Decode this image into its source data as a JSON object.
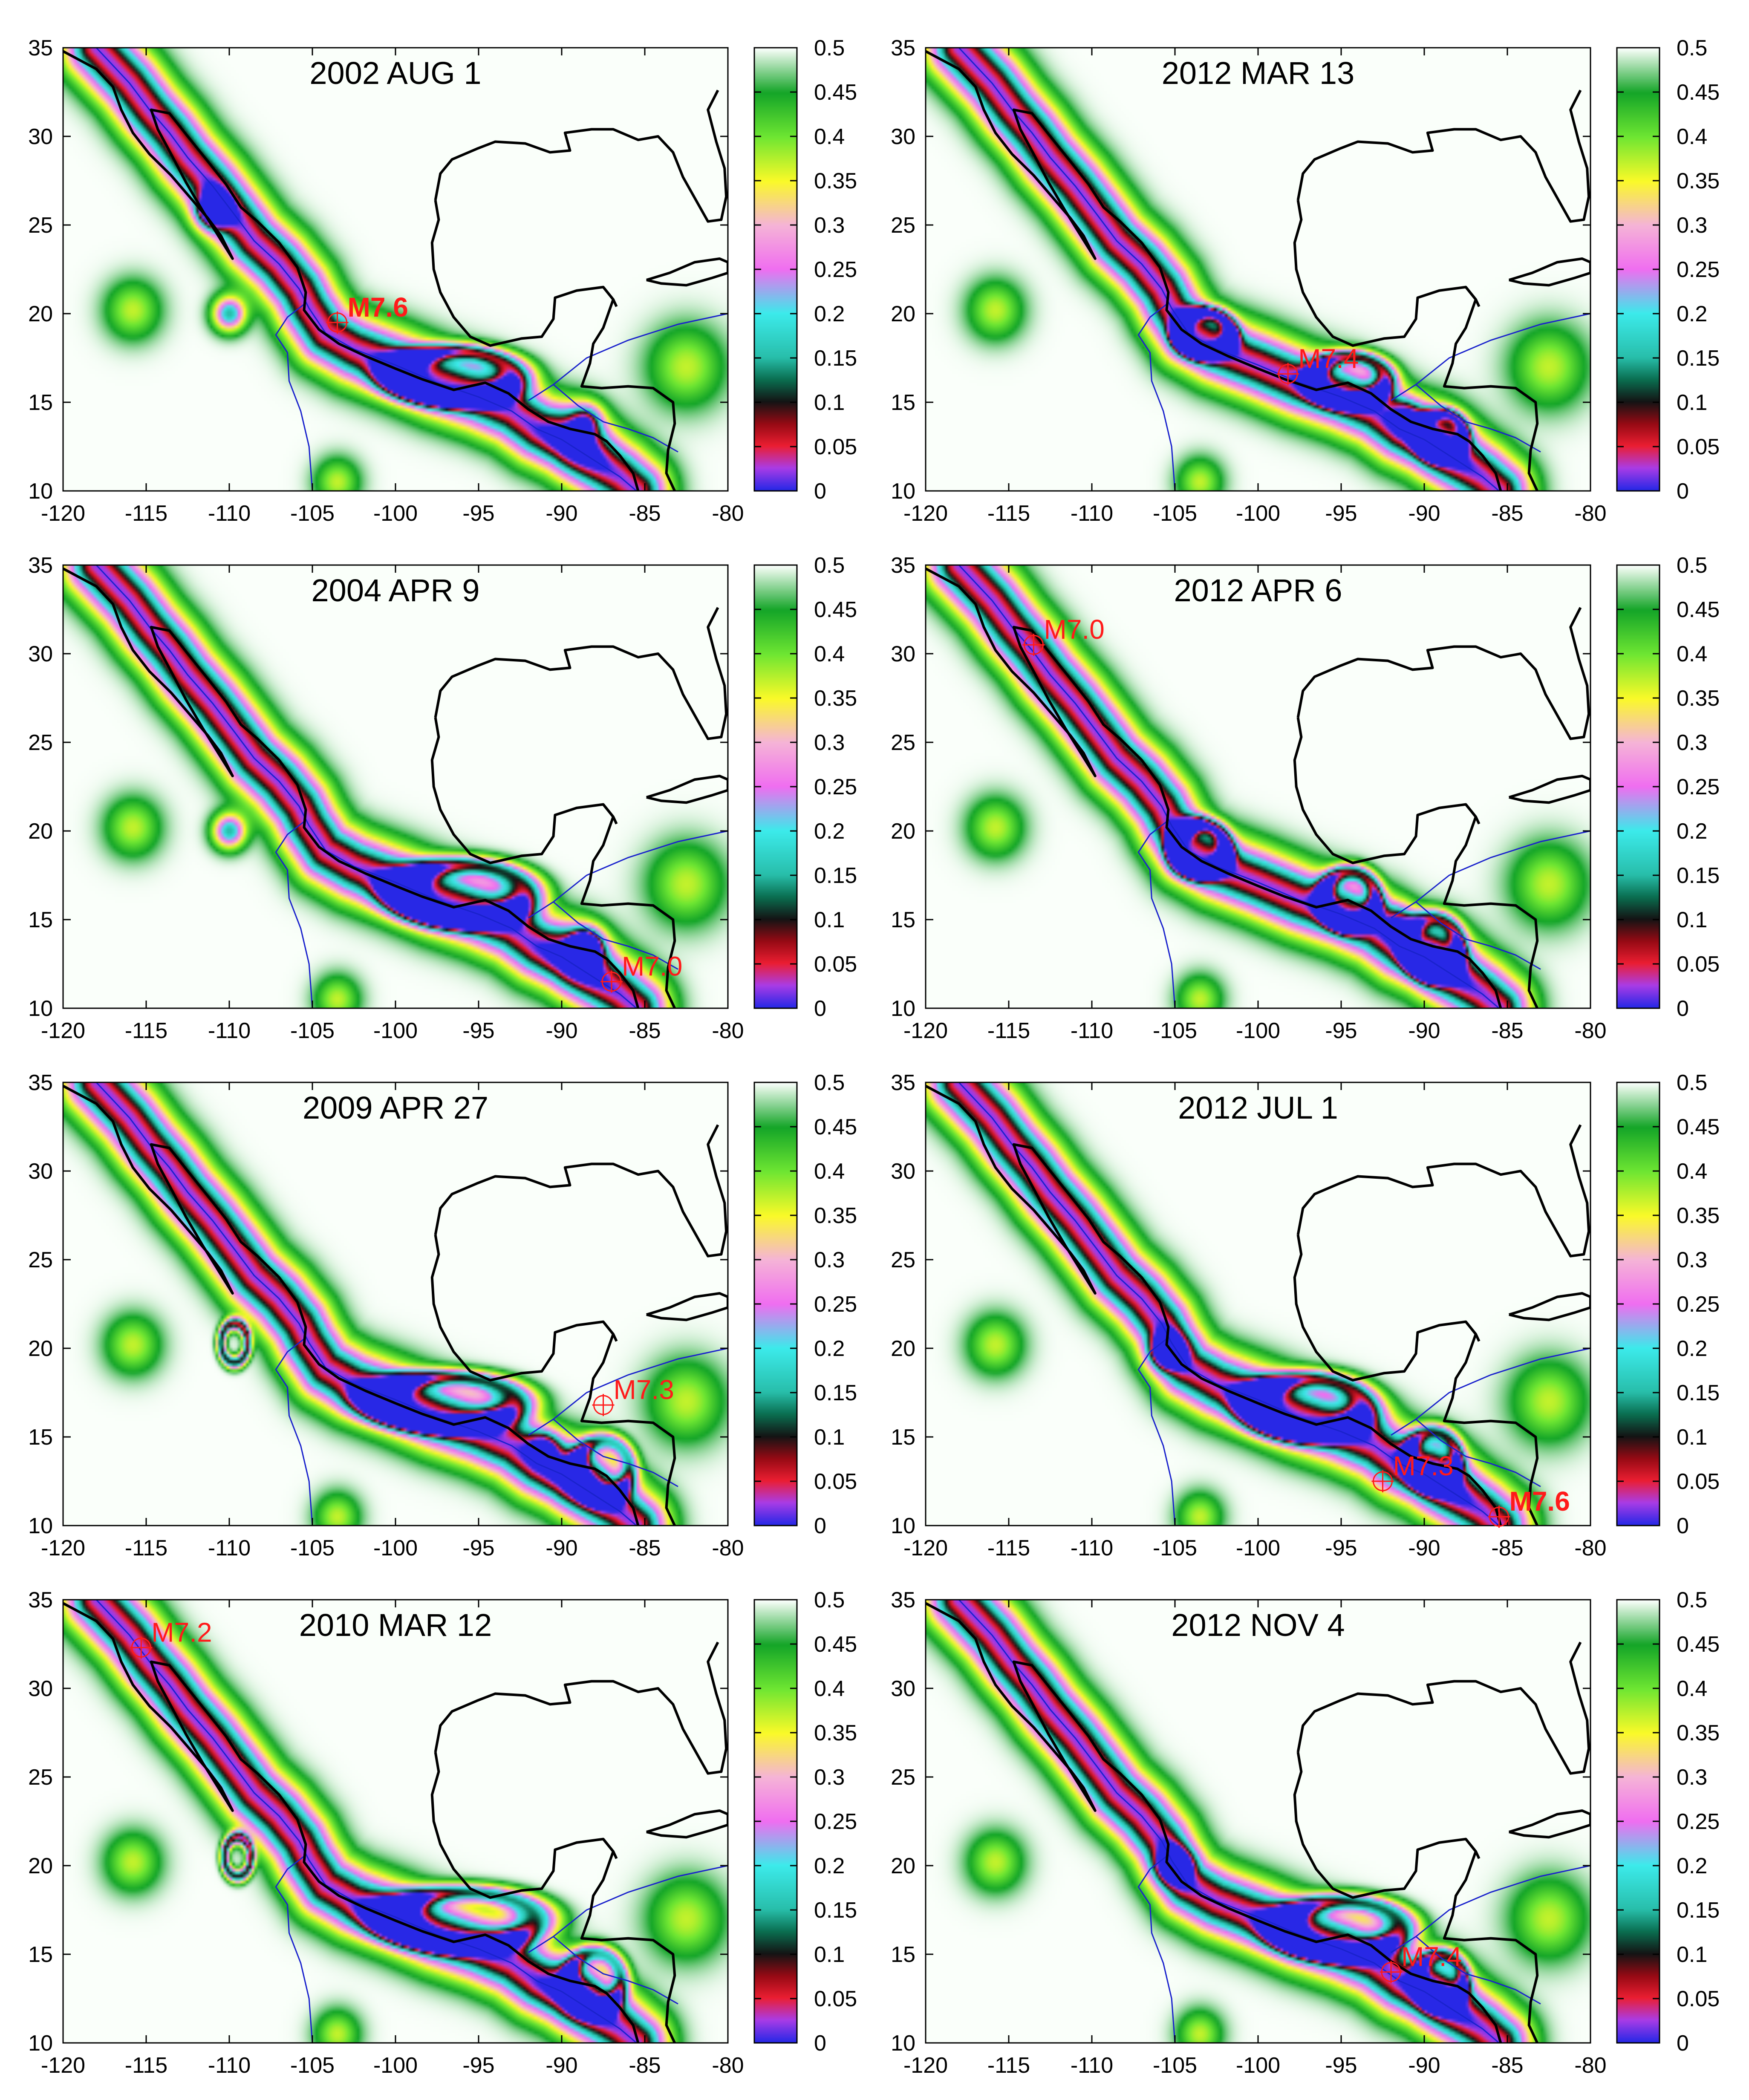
{
  "figure": {
    "colors": {
      "coast": "#000000",
      "plate_boundary": "#1a22cc",
      "event_marker": "#ff1a1a",
      "frame": "#000000",
      "background": "#ffffff"
    }
  },
  "chart_data": [
    {
      "type": "heatmap",
      "title": "2002 AUG 1",
      "x_ticks": [
        "-120",
        "-115",
        "-110",
        "-105",
        "-100",
        "-95",
        "-90",
        "-85",
        "-80"
      ],
      "y_ticks": [
        "35",
        "30",
        "25",
        "20",
        "15",
        "10"
      ],
      "xlim": [
        -120,
        -80
      ],
      "ylim": [
        10,
        35
      ],
      "colorbar": {
        "range": [
          0,
          0.5
        ],
        "ticks": [
          "0.5",
          "0.45",
          "0.4",
          "0.35",
          "0.3",
          "0.25",
          "0.2",
          "0.15",
          "0.1",
          "0.05",
          "0"
        ]
      },
      "events": [
        {
          "label": "M7.6",
          "lon": -103.5,
          "lat": 19.5,
          "bold": true
        }
      ],
      "minima": [
        {
          "lon": -110.0,
          "lat": 20.0,
          "kind": "point",
          "depth": 0.35
        },
        {
          "lon": -111.0,
          "lat": 25.8,
          "kind": "point",
          "depth": 0.45
        },
        {
          "lon": -96.5,
          "lat": 16.5,
          "kind": "loop",
          "rx": 3.6,
          "ry": 1.4,
          "depth": 0.35
        },
        {
          "lon": -88.5,
          "lat": 14.0,
          "kind": "point",
          "depth": 0.25
        }
      ]
    },
    {
      "type": "heatmap",
      "title": "2012 MAR 13",
      "x_ticks": [
        "-120",
        "-115",
        "-110",
        "-105",
        "-100",
        "-95",
        "-90",
        "-85",
        "-80"
      ],
      "y_ticks": [
        "35",
        "30",
        "25",
        "20",
        "15",
        "10"
      ],
      "xlim": [
        -120,
        -80
      ],
      "ylim": [
        10,
        35
      ],
      "colorbar": {
        "range": [
          0,
          0.5
        ],
        "ticks": [
          "0.5",
          "0.45",
          "0.4",
          "0.35",
          "0.3",
          "0.25",
          "0.2",
          "0.15",
          "0.1",
          "0.05",
          "0"
        ]
      },
      "events": [
        {
          "label": "M7.4",
          "lon": -98.2,
          "lat": 16.6,
          "bold": false
        }
      ],
      "minima": [
        {
          "lon": -103.2,
          "lat": 18.9,
          "kind": "loop",
          "rx": 1.6,
          "ry": 1.2,
          "depth": 0.35
        },
        {
          "lon": -94.5,
          "lat": 16.3,
          "kind": "loop",
          "rx": 2.2,
          "ry": 1.3,
          "depth": 0.35
        },
        {
          "lon": -91.0,
          "lat": 14.3,
          "kind": "point",
          "depth": 0.2
        },
        {
          "lon": -89.0,
          "lat": 13.2,
          "kind": "loop",
          "rx": 1.4,
          "ry": 1.2,
          "depth": 0.3
        }
      ]
    },
    {
      "type": "heatmap",
      "title": "2004 APR 9",
      "x_ticks": [
        "-120",
        "-115",
        "-110",
        "-105",
        "-100",
        "-95",
        "-90",
        "-85",
        "-80"
      ],
      "y_ticks": [
        "35",
        "30",
        "25",
        "20",
        "15",
        "10"
      ],
      "xlim": [
        -120,
        -80
      ],
      "ylim": [
        10,
        35
      ],
      "colorbar": {
        "range": [
          0,
          0.5
        ],
        "ticks": [
          "0.5",
          "0.45",
          "0.4",
          "0.35",
          "0.3",
          "0.25",
          "0.2",
          "0.15",
          "0.1",
          "0.05",
          "0"
        ]
      },
      "events": [
        {
          "label": "M7.0",
          "lon": -87.0,
          "lat": 11.5,
          "bold": false
        }
      ],
      "minima": [
        {
          "lon": -110.0,
          "lat": 20.0,
          "kind": "point",
          "depth": 0.35
        },
        {
          "lon": -96.0,
          "lat": 16.5,
          "kind": "loop",
          "rx": 3.8,
          "ry": 1.6,
          "depth": 0.35
        },
        {
          "lon": -88.5,
          "lat": 13.5,
          "kind": "point",
          "depth": 0.5
        }
      ]
    },
    {
      "type": "heatmap",
      "title": "2012 APR 6",
      "x_ticks": [
        "-120",
        "-115",
        "-110",
        "-105",
        "-100",
        "-95",
        "-90",
        "-85",
        "-80"
      ],
      "y_ticks": [
        "35",
        "30",
        "25",
        "20",
        "15",
        "10"
      ],
      "xlim": [
        -120,
        -80
      ],
      "ylim": [
        10,
        35
      ],
      "colorbar": {
        "range": [
          0,
          0.5
        ],
        "ticks": [
          "0.5",
          "0.45",
          "0.4",
          "0.35",
          "0.3",
          "0.25",
          "0.2",
          "0.15",
          "0.1",
          "0.05",
          "0"
        ]
      },
      "events": [
        {
          "label": "M7.0",
          "lon": -113.5,
          "lat": 30.5,
          "bold": false
        }
      ],
      "minima": [
        {
          "lon": -103.5,
          "lat": 19.0,
          "kind": "loop",
          "rx": 1.6,
          "ry": 1.4,
          "depth": 0.35
        },
        {
          "lon": -94.5,
          "lat": 16.2,
          "kind": "loop",
          "rx": 1.6,
          "ry": 1.5,
          "depth": 0.35
        },
        {
          "lon": -91.5,
          "lat": 15.0,
          "kind": "point",
          "depth": 0.2
        },
        {
          "lon": -89.5,
          "lat": 13.5,
          "kind": "loop",
          "rx": 1.6,
          "ry": 1.6,
          "depth": 0.3
        }
      ]
    },
    {
      "type": "heatmap",
      "title": "2009 APR 27",
      "x_ticks": [
        "-120",
        "-115",
        "-110",
        "-105",
        "-100",
        "-95",
        "-90",
        "-85",
        "-80"
      ],
      "y_ticks": [
        "35",
        "30",
        "25",
        "20",
        "15",
        "10"
      ],
      "xlim": [
        -120,
        -80
      ],
      "ylim": [
        10,
        35
      ],
      "colorbar": {
        "range": [
          0,
          0.5
        ],
        "ticks": [
          "0.5",
          "0.45",
          "0.4",
          "0.35",
          "0.3",
          "0.25",
          "0.2",
          "0.15",
          "0.1",
          "0.05",
          "0"
        ]
      },
      "events": [
        {
          "label": "M7.3",
          "lon": -87.5,
          "lat": 16.8,
          "bold": false
        }
      ],
      "minima": [
        {
          "lon": -109.7,
          "lat": 20.3,
          "kind": "loop",
          "rx": 0.8,
          "ry": 1.1,
          "depth": 0.4
        },
        {
          "lon": -97.0,
          "lat": 17.0,
          "kind": "loop",
          "rx": 4.2,
          "ry": 1.4,
          "depth": 0.35
        },
        {
          "lon": -91.0,
          "lat": 14.5,
          "kind": "point",
          "depth": 0.25
        },
        {
          "lon": -87.5,
          "lat": 13.2,
          "kind": "loop",
          "rx": 1.6,
          "ry": 1.6,
          "depth": 0.3
        }
      ]
    },
    {
      "type": "heatmap",
      "title": "2012 JUL 1",
      "x_ticks": [
        "-120",
        "-115",
        "-110",
        "-105",
        "-100",
        "-95",
        "-90",
        "-85",
        "-80"
      ],
      "y_ticks": [
        "35",
        "30",
        "25",
        "20",
        "15",
        "10"
      ],
      "xlim": [
        -120,
        -80
      ],
      "ylim": [
        10,
        35
      ],
      "colorbar": {
        "range": [
          0,
          0.5
        ],
        "ticks": [
          "0.5",
          "0.45",
          "0.4",
          "0.35",
          "0.3",
          "0.25",
          "0.2",
          "0.15",
          "0.1",
          "0.05",
          "0"
        ]
      },
      "events": [
        {
          "label": "M7.3",
          "lon": -92.5,
          "lat": 12.5,
          "bold": false
        },
        {
          "label": "M7.6",
          "lon": -85.5,
          "lat": 10.5,
          "bold": true
        }
      ],
      "minima": [
        {
          "lon": -105.5,
          "lat": 19.8,
          "kind": "point",
          "depth": 0.4
        },
        {
          "lon": -97.0,
          "lat": 16.7,
          "kind": "loop",
          "rx": 3.4,
          "ry": 1.6,
          "depth": 0.35
        },
        {
          "lon": -89.5,
          "lat": 13.8,
          "kind": "loop",
          "rx": 1.5,
          "ry": 1.5,
          "depth": 0.3
        }
      ]
    },
    {
      "type": "heatmap",
      "title": "2010 MAR 12",
      "x_ticks": [
        "-120",
        "-115",
        "-110",
        "-105",
        "-100",
        "-95",
        "-90",
        "-85",
        "-80"
      ],
      "y_ticks": [
        "35",
        "30",
        "25",
        "20",
        "15",
        "10"
      ],
      "xlim": [
        -120,
        -80
      ],
      "ylim": [
        10,
        35
      ],
      "colorbar": {
        "range": [
          0,
          0.5
        ],
        "ticks": [
          "0.5",
          "0.45",
          "0.4",
          "0.35",
          "0.3",
          "0.25",
          "0.2",
          "0.15",
          "0.1",
          "0.05",
          "0"
        ]
      },
      "events": [
        {
          "label": "M7.2",
          "lon": -115.3,
          "lat": 32.3,
          "bold": false
        }
      ],
      "minima": [
        {
          "lon": -109.5,
          "lat": 20.5,
          "kind": "loop",
          "rx": 0.8,
          "ry": 1.1,
          "depth": 0.4
        },
        {
          "lon": -96.0,
          "lat": 17.0,
          "kind": "loop",
          "rx": 4.4,
          "ry": 1.5,
          "depth": 0.35
        },
        {
          "lon": -88.0,
          "lat": 13.5,
          "kind": "loop",
          "rx": 1.6,
          "ry": 1.6,
          "depth": 0.3
        }
      ]
    },
    {
      "type": "heatmap",
      "title": "2012 NOV 4",
      "x_ticks": [
        "-120",
        "-115",
        "-110",
        "-105",
        "-100",
        "-95",
        "-90",
        "-85",
        "-80"
      ],
      "y_ticks": [
        "35",
        "30",
        "25",
        "20",
        "15",
        "10"
      ],
      "xlim": [
        -120,
        -80
      ],
      "ylim": [
        10,
        35
      ],
      "colorbar": {
        "range": [
          0,
          0.5
        ],
        "ticks": [
          "0.5",
          "0.45",
          "0.4",
          "0.35",
          "0.3",
          "0.25",
          "0.2",
          "0.15",
          "0.1",
          "0.05",
          "0"
        ]
      },
      "events": [
        {
          "label": "M7.4",
          "lon": -92.0,
          "lat": 14.0,
          "bold": false
        }
      ],
      "minima": [
        {
          "lon": -105.0,
          "lat": 20.0,
          "kind": "point",
          "depth": 0.4
        },
        {
          "lon": -95.0,
          "lat": 16.5,
          "kind": "loop",
          "rx": 3.6,
          "ry": 1.5,
          "depth": 0.35
        },
        {
          "lon": -89.0,
          "lat": 13.6,
          "kind": "loop",
          "rx": 1.4,
          "ry": 1.4,
          "depth": 0.3
        }
      ]
    }
  ]
}
